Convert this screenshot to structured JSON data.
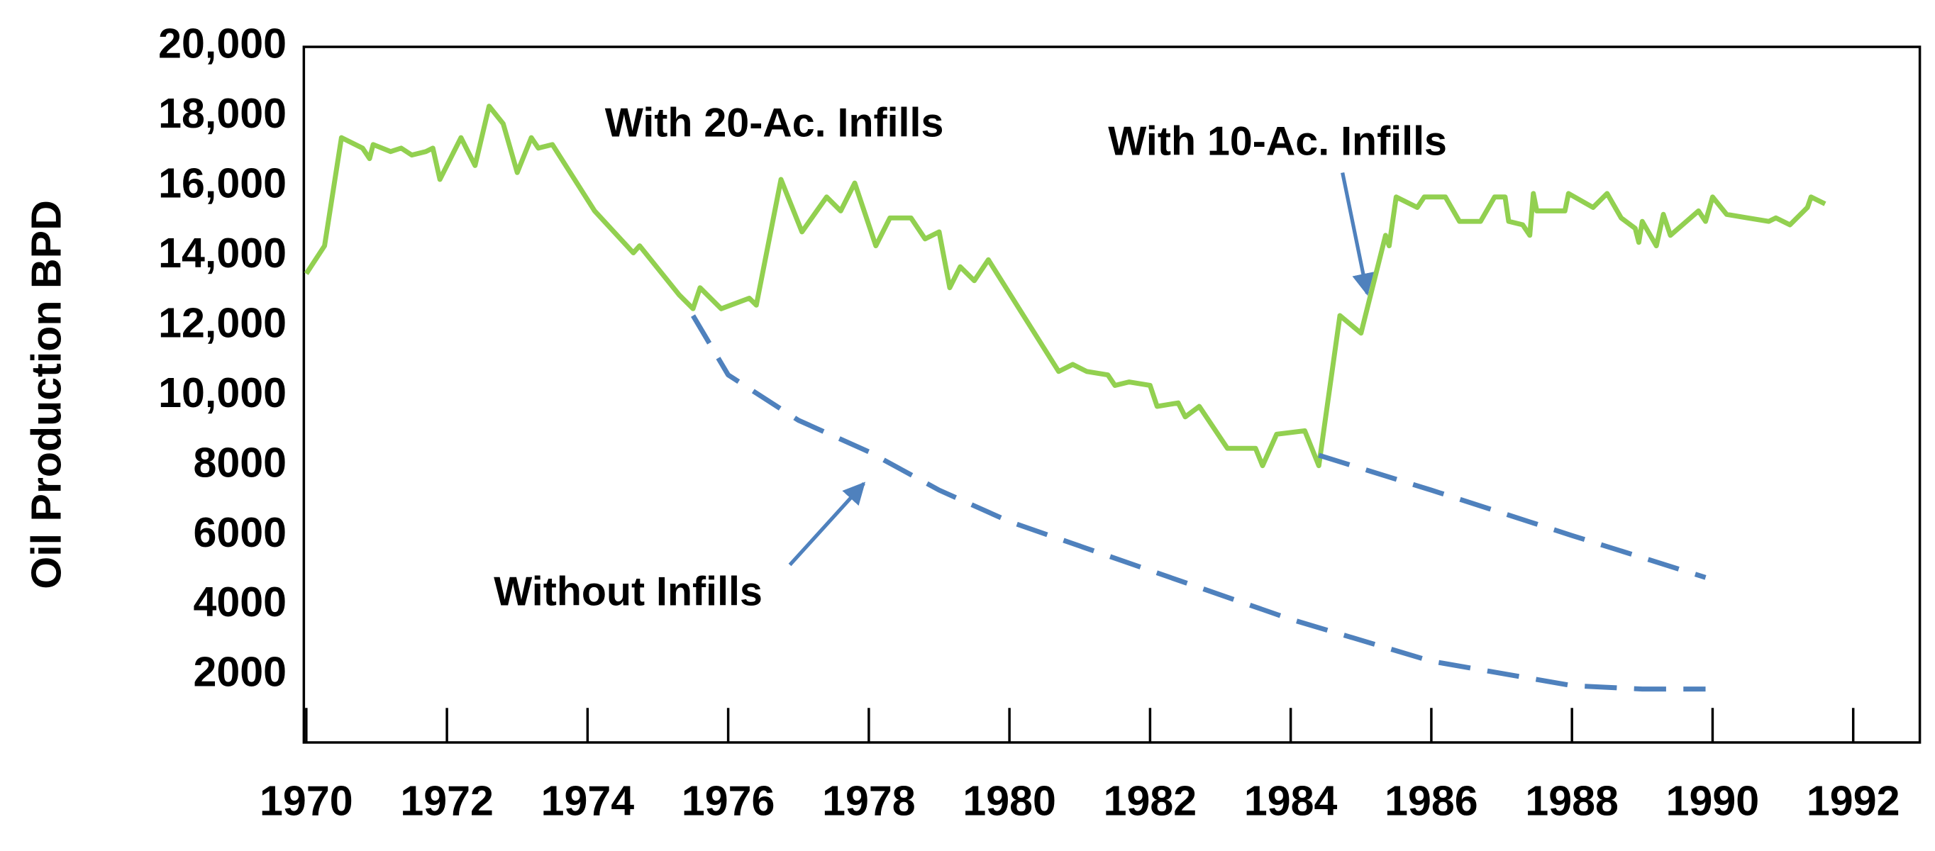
{
  "chart_data": {
    "type": "line",
    "y_label": "Oil Production BPD",
    "xlim": [
      1970,
      1993
    ],
    "ylim": [
      0,
      20000
    ],
    "xticks": [
      1970,
      1972,
      1974,
      1976,
      1978,
      1980,
      1982,
      1984,
      1986,
      1988,
      1990,
      1992
    ],
    "yticks": [
      2000,
      4000,
      6000,
      8000,
      {
        "value": 10000,
        "label": "10,000"
      },
      {
        "value": 12000,
        "label": "12,000"
      },
      {
        "value": 14000,
        "label": "14,000"
      },
      {
        "value": 16000,
        "label": "16,000"
      },
      {
        "value": 18000,
        "label": "18,000"
      },
      {
        "value": 20000,
        "label": "20,000"
      }
    ],
    "annotations": [
      "With 20-Ac. Infills",
      "With 10-Ac. Infills",
      "Without Infills"
    ],
    "series": [
      {
        "color": "#92d050",
        "dashed": false,
        "x": [
          1970.0,
          1970.26,
          1970.5,
          1970.8,
          1970.9,
          1970.95,
          1971.2,
          1971.35,
          1971.5,
          1971.7,
          1971.8,
          1971.9,
          1972.2,
          1972.4,
          1972.6,
          1972.8,
          1973.0,
          1973.2,
          1973.3,
          1973.5,
          1974.1,
          1974.65,
          1974.74,
          1975.3,
          1975.5,
          1975.6,
          1975.9,
          1976.3,
          1976.4,
          1976.75,
          1977.05,
          1977.4,
          1977.6,
          1977.8,
          1978.1,
          1978.3,
          1978.6,
          1978.8,
          1979.0,
          1979.15,
          1979.3,
          1979.5,
          1979.7,
          1980.2,
          1980.7,
          1980.9,
          1981.1,
          1981.4,
          1981.5,
          1981.7,
          1982.0,
          1982.1,
          1982.4,
          1982.5,
          1982.7,
          1983.1,
          1983.5,
          1983.6,
          1983.8,
          1984.2,
          1984.4,
          1984.7,
          1985.0,
          1985.35,
          1985.4,
          1985.5,
          1985.8,
          1985.9,
          1986.2,
          1986.4,
          1986.7,
          1986.9,
          1987.05,
          1987.1,
          1987.3,
          1987.4,
          1987.45,
          1987.5,
          1987.9,
          1987.95,
          1988.3,
          1988.5,
          1988.7,
          1988.9,
          1988.95,
          1989.0,
          1989.2,
          1989.3,
          1989.4,
          1989.8,
          1989.9,
          1990.0,
          1990.2,
          1990.5,
          1990.8,
          1990.9,
          1991.1,
          1991.35,
          1991.4,
          1991.6
        ],
        "values": [
          13500,
          14300,
          17400,
          17100,
          16800,
          17200,
          17000,
          17100,
          16900,
          17000,
          17100,
          16200,
          17400,
          16600,
          18300,
          17800,
          16400,
          17400,
          17100,
          17200,
          15300,
          14100,
          14300,
          12900,
          12500,
          13100,
          12500,
          12800,
          12600,
          16200,
          14700,
          15700,
          15300,
          16100,
          14300,
          15100,
          15100,
          14500,
          14700,
          13100,
          13700,
          13300,
          13900,
          12300,
          10700,
          10900,
          10700,
          10600,
          10300,
          10400,
          10300,
          9700,
          9800,
          9400,
          9700,
          8500,
          8500,
          8000,
          8900,
          9000,
          8000,
          12300,
          11800,
          14600,
          14300,
          15700,
          15400,
          15700,
          15700,
          15000,
          15000,
          15700,
          15700,
          15000,
          14900,
          14600,
          15800,
          15300,
          15300,
          15800,
          15400,
          15800,
          15100,
          14800,
          14400,
          15000,
          14300,
          15200,
          14600,
          15300,
          15000,
          15700,
          15200,
          15100,
          15000,
          15100,
          14900,
          15400,
          15700,
          15500
        ]
      },
      {
        "color": "#4f81bd",
        "dashed": true,
        "x": [
          1975.5,
          1976,
          1977,
          1978,
          1979,
          1980,
          1982,
          1984,
          1986,
          1988,
          1989,
          1989.9
        ],
        "values": [
          12300,
          10600,
          9300,
          8400,
          7300,
          6400,
          5000,
          3600,
          2400,
          1700,
          1600,
          1600
        ]
      },
      {
        "color": "#4f81bd",
        "dashed": true,
        "x": [
          1984.4,
          1986,
          1988,
          1989.9
        ],
        "values": [
          8300,
          7300,
          6000,
          4800
        ]
      }
    ]
  }
}
